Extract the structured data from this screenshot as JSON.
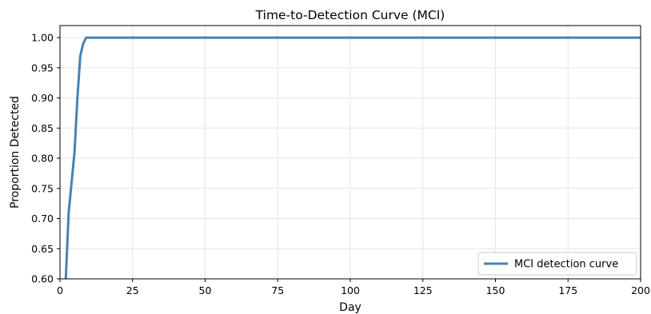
{
  "chart_data": {
    "type": "line",
    "title": "Time-to-Detection Curve (MCI)",
    "xlabel": "Day",
    "ylabel": "Proportion Detected",
    "xlim": [
      0,
      200
    ],
    "ylim": [
      0.6,
      1.02
    ],
    "xticks": [
      0,
      25,
      50,
      75,
      100,
      125,
      150,
      175,
      200
    ],
    "yticks": [
      0.6,
      0.65,
      0.7,
      0.75,
      0.8,
      0.85,
      0.9,
      0.95,
      1.0
    ],
    "xtick_labels": [
      "0",
      "25",
      "50",
      "75",
      "100",
      "125",
      "150",
      "175",
      "200"
    ],
    "ytick_labels": [
      "0.60",
      "0.65",
      "0.70",
      "0.75",
      "0.80",
      "0.85",
      "0.90",
      "0.95",
      "1.00"
    ],
    "grid": true,
    "legend_position": "lower-right",
    "series": [
      {
        "name": "MCI detection curve",
        "color": "#4682b4",
        "x": [
          2,
          3,
          4,
          5,
          6,
          7,
          8,
          9,
          10,
          200
        ],
        "y": [
          0.6,
          0.71,
          0.76,
          0.81,
          0.9,
          0.97,
          0.99,
          1.0,
          1.0,
          1.0
        ]
      }
    ]
  }
}
